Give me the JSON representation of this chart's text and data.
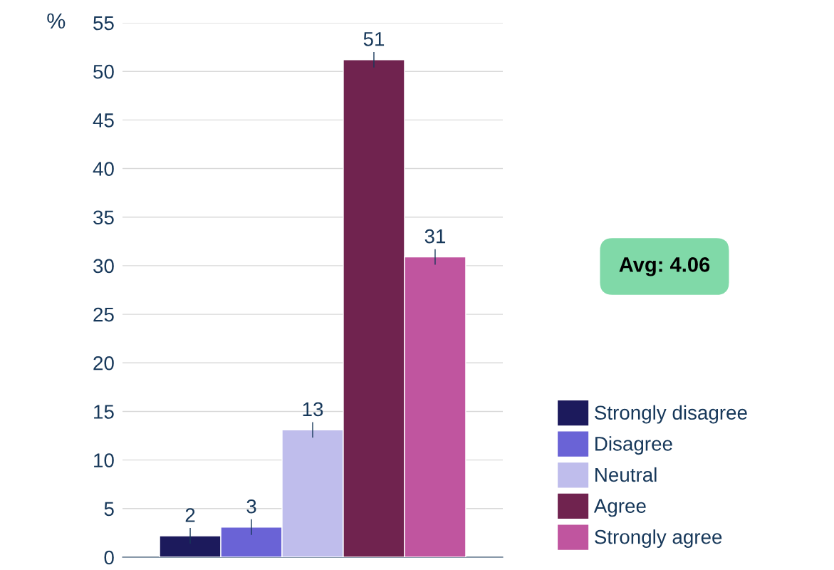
{
  "chart_data": {
    "type": "bar",
    "ylabel": "%",
    "categories": [
      null
    ],
    "series": [
      {
        "name": "Strongly disagree",
        "color": "#1c1a5c",
        "values": [
          2.2
        ],
        "errors": [
          0.8
        ],
        "value_labels": [
          "2"
        ]
      },
      {
        "name": "Disagree",
        "color": "#6a63d6",
        "values": [
          3.1
        ],
        "errors": [
          0.8
        ],
        "value_labels": [
          "3"
        ]
      },
      {
        "name": "Neutral",
        "color": "#bfbdec",
        "values": [
          13.1
        ],
        "errors": [
          0.8
        ],
        "value_labels": [
          "13"
        ]
      },
      {
        "name": "Agree",
        "color": "#70234f",
        "values": [
          51.2
        ],
        "errors": [
          0.8
        ],
        "value_labels": [
          "51"
        ]
      },
      {
        "name": "Strongly agree",
        "color": "#c0559f",
        "values": [
          30.9
        ],
        "errors": [
          0.8
        ],
        "value_labels": [
          "31"
        ]
      }
    ],
    "ylim": [
      0,
      55
    ],
    "yticks": [
      0,
      5,
      10,
      15,
      20,
      25,
      30,
      35,
      40,
      45,
      50,
      55
    ],
    "grid": "y",
    "legend": "right",
    "annotations": [
      "Avg: 4.06"
    ]
  }
}
